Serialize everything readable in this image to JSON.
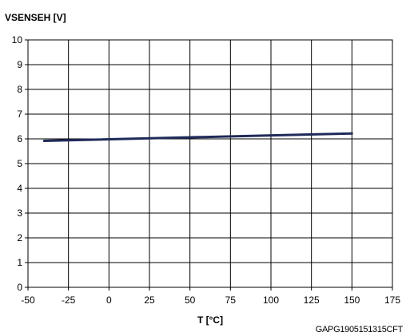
{
  "chart_data": {
    "type": "line",
    "ylabel": "VSENSEH [V]",
    "xlabel": "T [°C]",
    "xlim": [
      -50,
      175
    ],
    "ylim": [
      0,
      10
    ],
    "xticks": [
      "-50",
      "-25",
      "0",
      "25",
      "50",
      "75",
      "100",
      "125",
      "150",
      "175"
    ],
    "yticks": [
      "0",
      "1",
      "2",
      "3",
      "4",
      "5",
      "6",
      "7",
      "8",
      "9",
      "10"
    ],
    "grid": true,
    "series": [
      {
        "x": [
          -40,
          150
        ],
        "y": [
          5.92,
          6.22
        ],
        "color": "#1f2a5a"
      }
    ]
  },
  "footer": {
    "code": "GAPG1905151315CFT"
  }
}
